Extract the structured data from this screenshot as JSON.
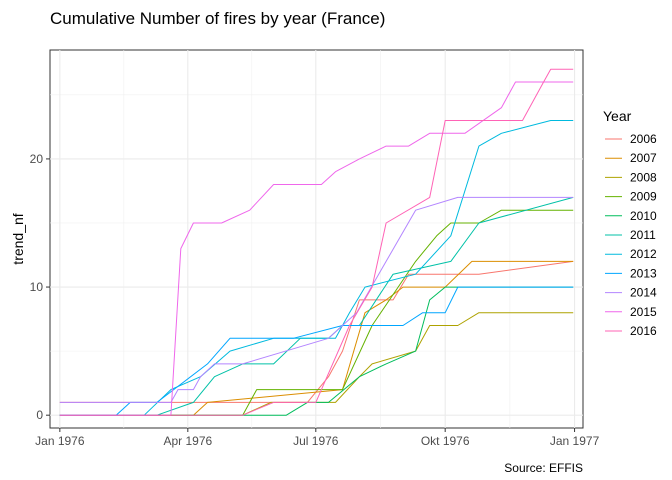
{
  "chart_data": {
    "type": "line",
    "title": "Cumulative Number of fires by year (France)",
    "xlabel": "",
    "ylabel": "trend_nf",
    "caption": "Source: EFFIS",
    "legend_title": "Year",
    "legend_position": "right",
    "grid": true,
    "x_type": "date",
    "xlim": [
      "1975-12-25",
      "1977-01-07"
    ],
    "ylim": [
      -1,
      28.5
    ],
    "x_ticks": [
      {
        "value": "1976-01-01",
        "label": "Jan 1976"
      },
      {
        "value": "1976-04-01",
        "label": "Apr 1976"
      },
      {
        "value": "1976-07-01",
        "label": "Jul 1976"
      },
      {
        "value": "1976-10-01",
        "label": "Okt 1976"
      },
      {
        "value": "1977-01-01",
        "label": "Jan 1977"
      }
    ],
    "y_ticks": [
      0,
      10,
      20
    ],
    "series": [
      {
        "name": "2006",
        "color": "#F8766D",
        "points": [
          [
            "1976-01-01",
            1
          ],
          [
            "1976-03-20",
            1
          ],
          [
            "1976-04-25",
            1
          ],
          [
            "1976-06-08",
            1
          ],
          [
            "1976-06-25",
            1
          ],
          [
            "1976-07-10",
            3
          ],
          [
            "1976-07-20",
            5
          ],
          [
            "1976-08-01",
            9
          ],
          [
            "1976-08-25",
            9
          ],
          [
            "1976-09-05",
            11
          ],
          [
            "1976-10-25",
            11
          ],
          [
            "1976-12-31",
            12
          ]
        ]
      },
      {
        "name": "2007",
        "color": "#DB8E00",
        "points": [
          [
            "1976-01-01",
            0
          ],
          [
            "1976-04-05",
            0
          ],
          [
            "1976-04-15",
            1
          ],
          [
            "1976-07-20",
            2
          ],
          [
            "1976-08-05",
            8
          ],
          [
            "1976-08-20",
            9
          ],
          [
            "1976-09-01",
            10
          ],
          [
            "1976-10-01",
            10
          ],
          [
            "1976-10-20",
            12
          ],
          [
            "1976-12-31",
            12
          ]
        ]
      },
      {
        "name": "2008",
        "color": "#AEA200",
        "points": [
          [
            "1976-01-01",
            0
          ],
          [
            "1976-05-10",
            0
          ],
          [
            "1976-05-30",
            1
          ],
          [
            "1976-07-15",
            1
          ],
          [
            "1976-08-01",
            3
          ],
          [
            "1976-08-10",
            4
          ],
          [
            "1976-09-10",
            5
          ],
          [
            "1976-09-20",
            7
          ],
          [
            "1976-10-10",
            7
          ],
          [
            "1976-10-25",
            8
          ],
          [
            "1976-12-31",
            8
          ]
        ]
      },
      {
        "name": "2009",
        "color": "#64B200",
        "points": [
          [
            "1976-01-01",
            0
          ],
          [
            "1976-05-10",
            0
          ],
          [
            "1976-05-20",
            2
          ],
          [
            "1976-07-20",
            2
          ],
          [
            "1976-08-10",
            7
          ],
          [
            "1976-09-10",
            12
          ],
          [
            "1976-09-25",
            14
          ],
          [
            "1976-10-05",
            15
          ],
          [
            "1976-10-25",
            15
          ],
          [
            "1976-11-10",
            16
          ],
          [
            "1976-12-31",
            16
          ]
        ]
      },
      {
        "name": "2010",
        "color": "#00BD5C",
        "points": [
          [
            "1976-01-01",
            0
          ],
          [
            "1976-05-01",
            0
          ],
          [
            "1976-06-10",
            0
          ],
          [
            "1976-06-25",
            1
          ],
          [
            "1976-07-10",
            1
          ],
          [
            "1976-08-01",
            3
          ],
          [
            "1976-08-20",
            4
          ],
          [
            "1976-09-10",
            5
          ],
          [
            "1976-09-20",
            9
          ],
          [
            "1976-10-01",
            10
          ],
          [
            "1976-12-31",
            10
          ]
        ]
      },
      {
        "name": "2011",
        "color": "#00C1A7",
        "points": [
          [
            "1976-01-01",
            0
          ],
          [
            "1976-03-10",
            0
          ],
          [
            "1976-04-05",
            1
          ],
          [
            "1976-04-20",
            3
          ],
          [
            "1976-05-10",
            4
          ],
          [
            "1976-06-01",
            4
          ],
          [
            "1976-06-20",
            6
          ],
          [
            "1976-07-10",
            6
          ],
          [
            "1976-07-20",
            7
          ],
          [
            "1976-08-01",
            7
          ],
          [
            "1976-08-25",
            11
          ],
          [
            "1976-10-05",
            12
          ],
          [
            "1976-10-25",
            15
          ],
          [
            "1976-12-31",
            17
          ]
        ]
      },
      {
        "name": "2012",
        "color": "#00BADE",
        "points": [
          [
            "1976-01-01",
            0
          ],
          [
            "1976-03-01",
            0
          ],
          [
            "1976-03-20",
            2
          ],
          [
            "1976-04-10",
            3
          ],
          [
            "1976-05-01",
            5
          ],
          [
            "1976-06-01",
            6
          ],
          [
            "1976-07-15",
            6
          ],
          [
            "1976-07-25",
            8
          ],
          [
            "1976-08-05",
            10
          ],
          [
            "1976-09-10",
            11
          ],
          [
            "1976-10-05",
            14
          ],
          [
            "1976-10-25",
            21
          ],
          [
            "1976-11-10",
            22
          ],
          [
            "1976-12-15",
            23
          ],
          [
            "1976-12-31",
            23
          ]
        ]
      },
      {
        "name": "2013",
        "color": "#00A6FF",
        "points": [
          [
            "1976-01-01",
            0
          ],
          [
            "1976-02-10",
            0
          ],
          [
            "1976-02-20",
            1
          ],
          [
            "1976-03-10",
            1
          ],
          [
            "1976-04-15",
            4
          ],
          [
            "1976-05-01",
            6
          ],
          [
            "1976-06-15",
            6
          ],
          [
            "1976-07-20",
            7
          ],
          [
            "1976-09-01",
            7
          ],
          [
            "1976-09-15",
            8
          ],
          [
            "1976-10-01",
            8
          ],
          [
            "1976-10-10",
            10
          ],
          [
            "1976-12-31",
            10
          ]
        ]
      },
      {
        "name": "2014",
        "color": "#B385FF",
        "points": [
          [
            "1976-01-01",
            1
          ],
          [
            "1976-03-20",
            1
          ],
          [
            "1976-03-25",
            2
          ],
          [
            "1976-04-05",
            2
          ],
          [
            "1976-04-10",
            3
          ],
          [
            "1976-04-20",
            4
          ],
          [
            "1976-05-10",
            4
          ],
          [
            "1976-07-10",
            6
          ],
          [
            "1976-07-30",
            8
          ],
          [
            "1976-08-20",
            12
          ],
          [
            "1976-09-10",
            16
          ],
          [
            "1976-10-10",
            17
          ],
          [
            "1976-12-31",
            17
          ]
        ]
      },
      {
        "name": "2015",
        "color": "#EF67EB",
        "points": [
          [
            "1976-01-01",
            0
          ],
          [
            "1976-03-20",
            0
          ],
          [
            "1976-03-27",
            13
          ],
          [
            "1976-04-05",
            15
          ],
          [
            "1976-04-25",
            15
          ],
          [
            "1976-05-15",
            16
          ],
          [
            "1976-06-01",
            18
          ],
          [
            "1976-06-20",
            18
          ],
          [
            "1976-07-05",
            18
          ],
          [
            "1976-07-15",
            19
          ],
          [
            "1976-08-01",
            20
          ],
          [
            "1976-08-20",
            21
          ],
          [
            "1976-09-05",
            21
          ],
          [
            "1976-09-20",
            22
          ],
          [
            "1976-10-15",
            22
          ],
          [
            "1976-11-10",
            24
          ],
          [
            "1976-11-20",
            26
          ],
          [
            "1976-12-31",
            26
          ]
        ]
      },
      {
        "name": "2016",
        "color": "#FF63B6",
        "points": [
          [
            "1976-01-01",
            0
          ],
          [
            "1976-05-10",
            0
          ],
          [
            "1976-06-01",
            1
          ],
          [
            "1976-07-01",
            1
          ],
          [
            "1976-07-25",
            7
          ],
          [
            "1976-08-10",
            10
          ],
          [
            "1976-08-20",
            15
          ],
          [
            "1976-09-20",
            17
          ],
          [
            "1976-10-01",
            23
          ],
          [
            "1976-11-25",
            23
          ],
          [
            "1976-12-10",
            26
          ],
          [
            "1976-12-15",
            27
          ],
          [
            "1976-12-31",
            27
          ]
        ]
      }
    ]
  }
}
